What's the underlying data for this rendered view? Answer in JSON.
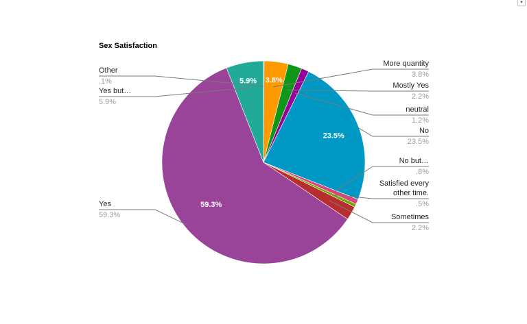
{
  "chart_data": {
    "type": "pie",
    "title": "Sex Satisfaction",
    "slices": [
      {
        "label": "Other",
        "value": 0.1,
        "pct_text": ".1%",
        "color": "#3366cc"
      },
      {
        "label": "More quantity",
        "value": 3.8,
        "pct_text": "3.8%",
        "color": "#ff9900"
      },
      {
        "label": "Mostly Yes",
        "value": 2.2,
        "pct_text": "2.2%",
        "color": "#109618"
      },
      {
        "label": "neutral",
        "value": 1.2,
        "pct_text": "1.2%",
        "color": "#990099"
      },
      {
        "label": "No",
        "value": 23.5,
        "pct_text": "23.5%",
        "color": "#0099c6"
      },
      {
        "label": "No but…",
        "value": 0.8,
        "pct_text": ".8%",
        "color": "#dd4477"
      },
      {
        "label": "Satisfied every other time.",
        "label_lines": [
          "Satisfied every",
          "other time."
        ],
        "value": 0.5,
        "pct_text": ".5%",
        "color": "#66aa00"
      },
      {
        "label": "Sometimes",
        "value": 2.2,
        "pct_text": "2.2%",
        "color": "#b82e2e"
      },
      {
        "label": "Yes",
        "value": 59.3,
        "pct_text": "59.3%",
        "color": "#994499"
      },
      {
        "label": "Yes but…",
        "value": 5.9,
        "pct_text": "5.9%",
        "color": "#22aa99"
      }
    ],
    "in_slice_labels": [
      "3.8%",
      "23.5%",
      "59.3%",
      "5.9%"
    ],
    "legend": "callouts",
    "start_angle": "top",
    "direction": "clockwise"
  },
  "ui": {
    "menu_icon": "chevron-down-icon"
  }
}
